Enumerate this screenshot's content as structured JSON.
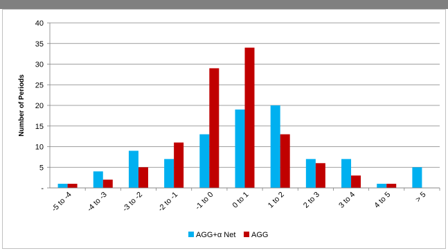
{
  "chart_data": {
    "type": "bar",
    "categories": [
      "-5 to -4",
      "-4 to -3",
      "-3 to -2",
      "-2 to -1",
      "-1 to 0",
      "0 to 1",
      "1 to 2",
      "2 to 3",
      "3 to 4",
      "4 to 5",
      "> 5"
    ],
    "series": [
      {
        "name": "AGG+α Net",
        "color": "#00b0f0",
        "values": [
          1,
          4,
          9,
          7,
          13,
          19,
          20,
          7,
          7,
          1,
          5
        ]
      },
      {
        "name": "AGG",
        "color": "#c00000",
        "values": [
          1,
          2,
          5,
          11,
          29,
          34,
          13,
          6,
          3,
          1,
          0
        ]
      }
    ],
    "ylabel": "Number of Periods",
    "ylim": [
      0,
      40
    ],
    "yticks": [
      0,
      5,
      10,
      15,
      20,
      25,
      30,
      35,
      40
    ],
    "ytick_labels": [
      "-",
      "5",
      "10",
      "15",
      "20",
      "25",
      "30",
      "35",
      "40"
    ],
    "grid": true,
    "legend_position": "bottom"
  }
}
